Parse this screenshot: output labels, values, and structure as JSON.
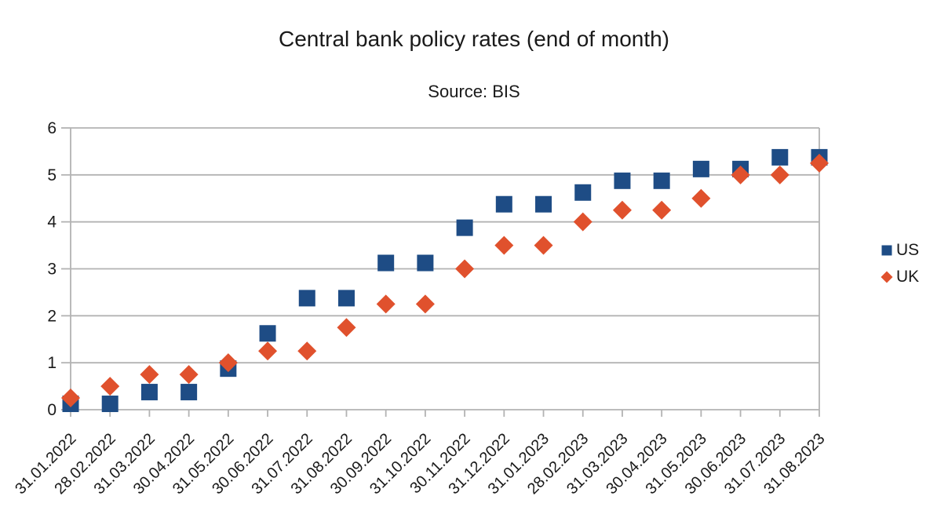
{
  "chart_data": {
    "type": "scatter",
    "title": "Central bank policy rates (end of month)",
    "subtitle": "Source: BIS",
    "categories": [
      "31.01.2022",
      "28.02.2022",
      "31.03.2022",
      "30.04.2022",
      "31.05.2022",
      "30.06.2022",
      "31.07.2022",
      "31.08.2022",
      "30.09.2022",
      "31.10.2022",
      "30.11.2022",
      "31.12.2022",
      "31.01.2023",
      "28.02.2023",
      "31.03.2023",
      "30.04.2023",
      "31.05.2023",
      "30.06.2023",
      "31.07.2023",
      "31.08.2023"
    ],
    "series": [
      {
        "name": "US",
        "marker": "square",
        "color": "#1E4C85",
        "values": [
          0.125,
          0.125,
          0.375,
          0.375,
          0.875,
          1.625,
          2.375,
          2.375,
          3.125,
          3.125,
          3.875,
          4.375,
          4.375,
          4.625,
          4.875,
          4.875,
          5.125,
          5.125,
          5.375,
          5.375
        ]
      },
      {
        "name": "UK",
        "marker": "diamond",
        "color": "#E0512D",
        "values": [
          0.25,
          0.5,
          0.75,
          0.75,
          1.0,
          1.25,
          1.25,
          1.75,
          2.25,
          2.25,
          3.0,
          3.5,
          3.5,
          4.0,
          4.25,
          4.25,
          4.5,
          5.0,
          5.0,
          5.25
        ]
      }
    ],
    "ylim": [
      0,
      6
    ],
    "yticks": [
      0,
      1,
      2,
      3,
      4,
      5,
      6
    ],
    "xlabel": "",
    "ylabel": "",
    "grid": "horizontal-only",
    "legend_position": "right",
    "gridline_color": "#B3B3B3",
    "text_color": "#1A1A1A"
  }
}
